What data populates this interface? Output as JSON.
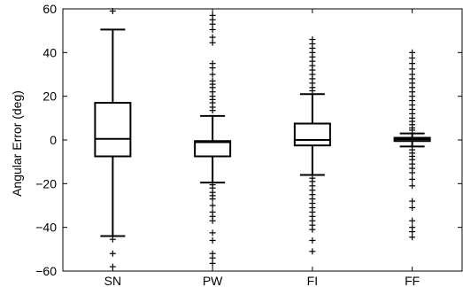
{
  "chart_data": {
    "type": "box",
    "title": "",
    "xlabel": "",
    "ylabel": "Angular Error (deg)",
    "ylim": [
      -60,
      60
    ],
    "yticks": [
      -60,
      -40,
      -20,
      0,
      20,
      40,
      60
    ],
    "yticks_labels": [
      "−60",
      "−40",
      "−20",
      "0",
      "20",
      "40",
      "60"
    ],
    "categories": [
      "SN",
      "PW",
      "FI",
      "FF"
    ],
    "boxes": [
      {
        "name": "SN",
        "whisker_low": -44,
        "q1": -7.5,
        "median": 0.5,
        "q3": 17,
        "whisker_high": 50.5,
        "outliers": [
          59,
          -45.5,
          -52,
          -58
        ]
      },
      {
        "name": "PW",
        "whisker_low": -19.5,
        "q1": -7.5,
        "median": -1,
        "q3": -0.5,
        "whisker_high": 11,
        "outliers": [
          57,
          55,
          53,
          50.5,
          47,
          44.5,
          35,
          33,
          30,
          27,
          25.5,
          24,
          22,
          20,
          18.5,
          17,
          15,
          13.5,
          -20.5,
          -22,
          -24,
          -25.5,
          -27,
          -30,
          -33,
          -35,
          -37,
          -42.5,
          -46,
          -52,
          -54,
          -56.5
        ]
      },
      {
        "name": "FI",
        "whisker_low": -16,
        "q1": -2.5,
        "median": 0,
        "q3": 7.5,
        "whisker_high": 21,
        "outliers": [
          46,
          44,
          42,
          40,
          38,
          36,
          34,
          32,
          30,
          28,
          26,
          24,
          22.5,
          -17.5,
          -19,
          -21,
          -23,
          -25,
          -27,
          -29,
          -31,
          -33,
          -35,
          -37,
          -39,
          -41,
          -46,
          -51
        ]
      },
      {
        "name": "FF",
        "whisker_low": -3,
        "q1": -0.5,
        "median": 0.3,
        "q3": 1,
        "whisker_high": 3,
        "outliers": [
          40,
          37.5,
          35,
          32.5,
          30,
          28,
          26,
          24,
          22,
          20,
          18,
          16,
          14,
          12,
          10,
          8.5,
          7,
          5.5,
          4.5,
          -4.5,
          -6,
          -7.5,
          -9,
          -11,
          -13,
          -15,
          -18,
          -21,
          -28,
          -31,
          -37,
          -40,
          -42,
          -44.5
        ]
      }
    ]
  }
}
